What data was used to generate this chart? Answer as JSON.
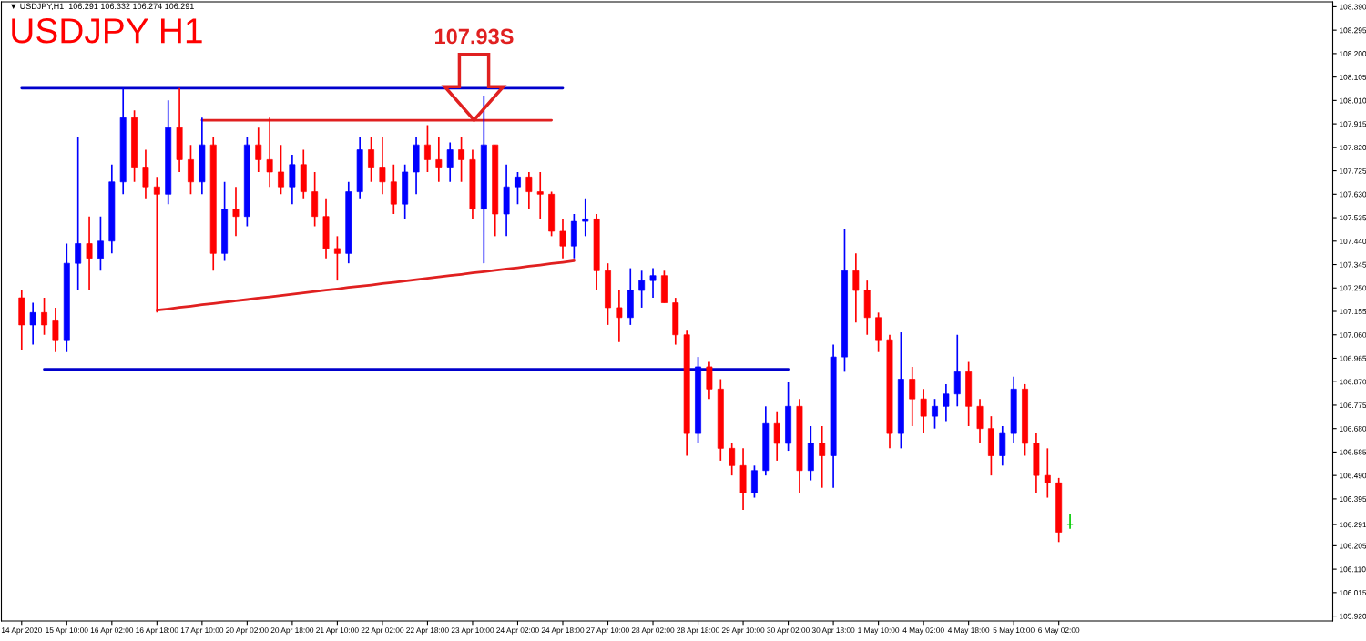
{
  "chart_data": {
    "type": "candlestick",
    "title": "USDJPY H1",
    "annotations": [
      "▼ USDJPY,H1  106.291 106.332 106.274 106.291",
      "107.93S"
    ],
    "categories": [
      "14 Apr 2020",
      null,
      null,
      null,
      "15 Apr 10:00",
      null,
      null,
      null,
      "16 Apr 02:00",
      null,
      null,
      null,
      "16 Apr 18:00",
      null,
      null,
      null,
      "17 Apr 10:00",
      null,
      null,
      null,
      "20 Apr 02:00",
      null,
      null,
      null,
      "20 Apr 18:00",
      null,
      null,
      null,
      "21 Apr 10:00",
      null,
      null,
      null,
      "22 Apr 02:00",
      null,
      null,
      null,
      "22 Apr 18:00",
      null,
      null,
      null,
      "23 Apr 10:00",
      null,
      null,
      null,
      "24 Apr 02:00",
      null,
      null,
      null,
      "24 Apr 18:00",
      null,
      null,
      null,
      "27 Apr 10:00",
      null,
      null,
      null,
      "28 Apr 02:00",
      null,
      null,
      null,
      "28 Apr 18:00",
      null,
      null,
      null,
      "29 Apr 10:00",
      null,
      null,
      null,
      "30 Apr 02:00",
      null,
      null,
      null,
      "30 Apr 18:00",
      null,
      null,
      null,
      "1 May 10:00",
      null,
      null,
      null,
      "4 May 02:00",
      null,
      null,
      null,
      "4 May 18:00",
      null,
      null,
      null,
      "5 May 10:00",
      null,
      null,
      null,
      "6 May 02:00",
      null
    ],
    "ohlc": [
      [
        107.21,
        107.24,
        107.0,
        107.1
      ],
      [
        107.1,
        107.19,
        107.02,
        107.15
      ],
      [
        107.15,
        107.21,
        107.06,
        107.1
      ],
      [
        107.12,
        107.17,
        106.99,
        107.04
      ],
      [
        107.04,
        107.43,
        106.99,
        107.35
      ],
      [
        107.35,
        107.86,
        107.24,
        107.43
      ],
      [
        107.43,
        107.54,
        107.24,
        107.37
      ],
      [
        107.37,
        107.54,
        107.32,
        107.44
      ],
      [
        107.44,
        107.75,
        107.39,
        107.68
      ],
      [
        107.68,
        108.06,
        107.63,
        107.94
      ],
      [
        107.94,
        107.97,
        107.68,
        107.74
      ],
      [
        107.74,
        107.81,
        107.61,
        107.66
      ],
      [
        107.66,
        107.7,
        107.15,
        107.63
      ],
      [
        107.63,
        108.01,
        107.59,
        107.9
      ],
      [
        107.9,
        108.06,
        107.72,
        107.77
      ],
      [
        107.77,
        107.83,
        107.63,
        107.68
      ],
      [
        107.68,
        107.94,
        107.63,
        107.83
      ],
      [
        107.83,
        107.86,
        107.32,
        107.39
      ],
      [
        107.39,
        107.68,
        107.36,
        107.57
      ],
      [
        107.57,
        107.66,
        107.46,
        107.54
      ],
      [
        107.54,
        107.86,
        107.5,
        107.83
      ],
      [
        107.83,
        107.9,
        107.72,
        107.77
      ],
      [
        107.77,
        107.94,
        107.66,
        107.72
      ],
      [
        107.72,
        107.83,
        107.63,
        107.66
      ],
      [
        107.66,
        107.79,
        107.59,
        107.75
      ],
      [
        107.75,
        107.81,
        107.61,
        107.64
      ],
      [
        107.64,
        107.72,
        107.5,
        107.54
      ],
      [
        107.54,
        107.61,
        107.37,
        107.41
      ],
      [
        107.41,
        107.46,
        107.28,
        107.39
      ],
      [
        107.39,
        107.68,
        107.35,
        107.64
      ],
      [
        107.64,
        107.86,
        107.61,
        107.81
      ],
      [
        107.81,
        107.86,
        107.68,
        107.74
      ],
      [
        107.74,
        107.86,
        107.63,
        107.68
      ],
      [
        107.68,
        107.75,
        107.55,
        107.59
      ],
      [
        107.59,
        107.75,
        107.53,
        107.72
      ],
      [
        107.72,
        107.86,
        107.63,
        107.83
      ],
      [
        107.83,
        107.91,
        107.72,
        107.77
      ],
      [
        107.77,
        107.86,
        107.68,
        107.74
      ],
      [
        107.74,
        107.84,
        107.68,
        107.81
      ],
      [
        107.81,
        107.86,
        107.68,
        107.77
      ],
      [
        107.77,
        107.81,
        107.53,
        107.57
      ],
      [
        107.57,
        108.03,
        107.35,
        107.83
      ],
      [
        107.83,
        107.83,
        107.46,
        107.55
      ],
      [
        107.55,
        107.75,
        107.46,
        107.66
      ],
      [
        107.66,
        107.72,
        107.59,
        107.7
      ],
      [
        107.7,
        107.72,
        107.57,
        107.64
      ],
      [
        107.64,
        107.72,
        107.53,
        107.63
      ],
      [
        107.63,
        107.64,
        107.46,
        107.48
      ],
      [
        107.48,
        107.53,
        107.37,
        107.42
      ],
      [
        107.42,
        107.55,
        107.37,
        107.52
      ],
      [
        107.52,
        107.61,
        107.46,
        107.53
      ],
      [
        107.53,
        107.55,
        107.24,
        107.32
      ],
      [
        107.32,
        107.35,
        107.1,
        107.17
      ],
      [
        107.17,
        107.24,
        107.03,
        107.13
      ],
      [
        107.13,
        107.33,
        107.1,
        107.24
      ],
      [
        107.24,
        107.32,
        107.17,
        107.28
      ],
      [
        107.28,
        107.33,
        107.21,
        107.3
      ],
      [
        107.3,
        107.32,
        107.19,
        107.19
      ],
      [
        107.19,
        107.21,
        107.02,
        107.06
      ],
      [
        107.06,
        107.08,
        106.57,
        106.66
      ],
      [
        106.66,
        106.97,
        106.62,
        106.93
      ],
      [
        106.93,
        106.95,
        106.8,
        106.84
      ],
      [
        106.84,
        106.88,
        106.55,
        106.6
      ],
      [
        106.6,
        106.62,
        106.49,
        106.53
      ],
      [
        106.53,
        106.6,
        106.35,
        106.42
      ],
      [
        106.42,
        106.53,
        106.4,
        106.51
      ],
      [
        106.51,
        106.77,
        106.49,
        106.7
      ],
      [
        106.7,
        106.75,
        106.55,
        106.62
      ],
      [
        106.62,
        106.87,
        106.59,
        106.77
      ],
      [
        106.77,
        106.8,
        106.42,
        106.51
      ],
      [
        106.51,
        106.69,
        106.47,
        106.62
      ],
      [
        106.62,
        106.69,
        106.44,
        106.57
      ],
      [
        106.57,
        107.02,
        106.44,
        106.97
      ],
      [
        106.97,
        107.49,
        106.91,
        107.32
      ],
      [
        107.32,
        107.39,
        107.11,
        107.24
      ],
      [
        107.24,
        107.28,
        107.06,
        107.13
      ],
      [
        107.13,
        107.15,
        106.99,
        107.04
      ],
      [
        107.04,
        107.06,
        106.6,
        106.66
      ],
      [
        106.66,
        107.07,
        106.6,
        106.88
      ],
      [
        106.88,
        106.93,
        106.69,
        106.8
      ],
      [
        106.8,
        106.84,
        106.66,
        106.73
      ],
      [
        106.73,
        106.8,
        106.68,
        106.77
      ],
      [
        106.77,
        106.86,
        106.71,
        106.82
      ],
      [
        106.82,
        107.06,
        106.77,
        106.91
      ],
      [
        106.91,
        106.95,
        106.69,
        106.77
      ],
      [
        106.77,
        106.8,
        106.62,
        106.68
      ],
      [
        106.68,
        106.73,
        106.49,
        106.57
      ],
      [
        106.57,
        106.69,
        106.53,
        106.66
      ],
      [
        106.66,
        106.89,
        106.62,
        106.84
      ],
      [
        106.84,
        106.86,
        106.57,
        106.62
      ],
      [
        106.62,
        106.66,
        106.42,
        106.49
      ],
      [
        106.49,
        106.6,
        106.4,
        106.46
      ],
      [
        106.46,
        106.48,
        106.22,
        106.26
      ],
      [
        106.291,
        106.332,
        106.274,
        106.291
      ]
    ],
    "colors": [
      "#ff0000",
      "#0000ff",
      "#ff0000",
      "#ff0000",
      "#0000ff",
      "#0000ff",
      "#ff0000",
      "#0000ff",
      "#0000ff",
      "#0000ff",
      "#ff0000",
      "#ff0000",
      "#ff0000",
      "#0000ff",
      "#ff0000",
      "#ff0000",
      "#0000ff",
      "#ff0000",
      "#0000ff",
      "#ff0000",
      "#0000ff",
      "#ff0000",
      "#ff0000",
      "#ff0000",
      "#0000ff",
      "#ff0000",
      "#ff0000",
      "#ff0000",
      "#ff0000",
      "#0000ff",
      "#0000ff",
      "#ff0000",
      "#ff0000",
      "#ff0000",
      "#0000ff",
      "#0000ff",
      "#ff0000",
      "#ff0000",
      "#0000ff",
      "#ff0000",
      "#ff0000",
      "#0000ff",
      "#ff0000",
      "#0000ff",
      "#0000ff",
      "#ff0000",
      "#ff0000",
      "#ff0000",
      "#ff0000",
      "#0000ff",
      "#0000ff",
      "#ff0000",
      "#ff0000",
      "#ff0000",
      "#0000ff",
      "#0000ff",
      "#0000ff",
      "#ff0000",
      "#ff0000",
      "#ff0000",
      "#0000ff",
      "#ff0000",
      "#ff0000",
      "#ff0000",
      "#ff0000",
      "#0000ff",
      "#0000ff",
      "#ff0000",
      "#0000ff",
      "#ff0000",
      "#0000ff",
      "#ff0000",
      "#0000ff",
      "#0000ff",
      "#ff0000",
      "#ff0000",
      "#ff0000",
      "#ff0000",
      "#0000ff",
      "#ff0000",
      "#ff0000",
      "#0000ff",
      "#0000ff",
      "#0000ff",
      "#ff0000",
      "#ff0000",
      "#ff0000",
      "#0000ff",
      "#0000ff",
      "#ff0000",
      "#ff0000",
      "#ff0000",
      "#ff0000",
      "#00cc00"
    ],
    "series": [
      {
        "type": "line",
        "color": "#0000cc",
        "values": [
          108.06,
          108.06,
          108.06,
          108.06,
          108.06,
          108.06,
          108.06,
          108.06,
          108.06,
          108.06,
          108.06,
          108.06,
          108.06,
          108.06,
          108.06,
          108.06,
          108.06,
          108.06,
          108.06,
          108.06,
          108.06,
          108.06,
          108.06,
          108.06,
          108.06,
          108.06,
          108.06,
          108.06,
          108.06,
          108.06,
          108.06,
          108.06,
          108.06,
          108.06,
          108.06,
          108.06,
          108.06,
          108.06,
          108.06,
          108.06,
          108.06,
          108.06,
          108.06,
          108.06,
          108.06,
          108.06,
          108.06,
          108.06,
          108.06,
          null,
          null,
          null,
          null,
          null,
          null,
          null,
          null,
          null,
          null,
          null,
          null,
          null,
          null,
          null,
          null,
          null,
          null,
          null,
          null,
          null,
          null,
          null,
          null,
          null,
          null,
          null,
          null,
          null,
          null,
          null,
          null,
          null,
          null,
          null,
          null,
          null,
          null,
          null,
          null,
          null,
          null,
          null,
          null,
          null
        ]
      },
      {
        "type": "line",
        "color": "#e02020",
        "values": [
          null,
          null,
          null,
          null,
          null,
          null,
          null,
          null,
          null,
          null,
          null,
          null,
          null,
          null,
          null,
          null,
          107.93,
          107.93,
          107.93,
          107.93,
          107.93,
          107.93,
          107.93,
          107.93,
          107.93,
          107.93,
          107.93,
          107.93,
          107.93,
          107.93,
          107.93,
          107.93,
          107.93,
          107.93,
          107.93,
          107.93,
          107.93,
          107.93,
          107.93,
          107.93,
          107.93,
          107.93,
          107.93,
          107.93,
          107.93,
          107.93,
          107.93,
          107.93,
          null,
          null,
          null,
          null,
          null,
          null,
          null,
          null,
          null,
          null,
          null,
          null,
          null,
          null,
          null,
          null,
          null,
          null,
          null,
          null,
          null,
          null,
          null,
          null,
          null,
          null,
          null,
          null,
          null,
          null,
          null,
          null,
          null,
          null,
          null,
          null,
          null,
          null,
          null,
          null,
          null,
          null,
          null,
          null,
          null,
          null
        ]
      },
      {
        "type": "line",
        "color": "#e02020",
        "values": [
          null,
          null,
          null,
          null,
          null,
          null,
          null,
          null,
          null,
          null,
          null,
          null,
          107.16,
          107.165,
          107.171,
          107.176,
          107.182,
          107.187,
          107.192,
          107.198,
          107.203,
          107.209,
          107.214,
          107.219,
          107.225,
          107.23,
          107.236,
          107.241,
          107.246,
          107.252,
          107.257,
          107.262,
          107.268,
          107.273,
          107.278,
          107.284,
          107.289,
          107.295,
          107.3,
          107.305,
          107.311,
          107.316,
          107.322,
          107.327,
          107.332,
          107.338,
          107.343,
          107.349,
          107.354,
          107.36,
          null,
          null,
          null,
          null,
          null,
          null,
          null,
          null,
          null,
          null,
          null,
          null,
          null,
          null,
          null,
          null,
          null,
          null,
          null,
          null,
          null,
          null,
          null,
          null,
          null,
          null,
          null,
          null,
          null,
          null,
          null,
          null,
          null,
          null,
          null,
          null,
          null,
          null,
          null,
          null,
          null,
          null,
          null,
          null
        ]
      },
      {
        "type": "line",
        "color": "#0000cc",
        "values": [
          null,
          null,
          106.92,
          106.92,
          106.92,
          106.92,
          106.92,
          106.92,
          106.92,
          106.92,
          106.92,
          106.92,
          106.92,
          106.92,
          106.92,
          106.92,
          106.92,
          106.92,
          106.92,
          106.92,
          106.92,
          106.92,
          106.92,
          106.92,
          106.92,
          106.92,
          106.92,
          106.92,
          106.92,
          106.92,
          106.92,
          106.92,
          106.92,
          106.92,
          106.92,
          106.92,
          106.92,
          106.92,
          106.92,
          106.92,
          106.92,
          106.92,
          106.92,
          106.92,
          106.92,
          106.92,
          106.92,
          106.92,
          106.92,
          106.92,
          106.92,
          106.92,
          106.92,
          106.92,
          106.92,
          106.92,
          106.92,
          106.92,
          106.92,
          106.92,
          106.92,
          106.92,
          106.92,
          106.92,
          106.92,
          106.92,
          106.92,
          106.92,
          106.92,
          null,
          null,
          null,
          null,
          null,
          null,
          null,
          null,
          null,
          null,
          null,
          null,
          null,
          null,
          null,
          null,
          null,
          null,
          null,
          null,
          null,
          null,
          null,
          null,
          null
        ]
      }
    ],
    "ylim": [
      105.9,
      108.41
    ],
    "yticks": [
      {
        "value": 105.92,
        "label": "105.920"
      },
      {
        "value": 106.015,
        "label": "106.015"
      },
      {
        "value": 106.11,
        "label": "106.110"
      },
      {
        "value": 106.205,
        "label": "106.205"
      },
      {
        "value": 106.291,
        "label": "106.291"
      },
      {
        "value": 106.395,
        "label": "106.395"
      },
      {
        "value": 106.49,
        "label": "106.490"
      },
      {
        "value": 106.585,
        "label": "106.585"
      },
      {
        "value": 106.68,
        "label": "106.680"
      },
      {
        "value": 106.775,
        "label": "106.775"
      },
      {
        "value": 106.87,
        "label": "106.870"
      },
      {
        "value": 106.965,
        "label": "106.965"
      },
      {
        "value": 107.06,
        "label": "107.060"
      },
      {
        "value": 107.155,
        "label": "107.155"
      },
      {
        "value": 107.25,
        "label": "107.250"
      },
      {
        "value": 107.345,
        "label": "107.345"
      },
      {
        "value": 107.44,
        "label": "107.440"
      },
      {
        "value": 107.535,
        "label": "107.535"
      },
      {
        "value": 107.63,
        "label": "107.630"
      },
      {
        "value": 107.725,
        "label": "107.725"
      },
      {
        "value": 107.82,
        "label": "107.820"
      },
      {
        "value": 107.915,
        "label": "107.915"
      },
      {
        "value": 108.01,
        "label": "108.010"
      },
      {
        "value": 108.105,
        "label": "108.105"
      },
      {
        "value": 108.2,
        "label": "108.200"
      },
      {
        "value": 108.295,
        "label": "108.295"
      },
      {
        "value": 108.39,
        "label": "108.390"
      }
    ],
    "grid": false
  }
}
